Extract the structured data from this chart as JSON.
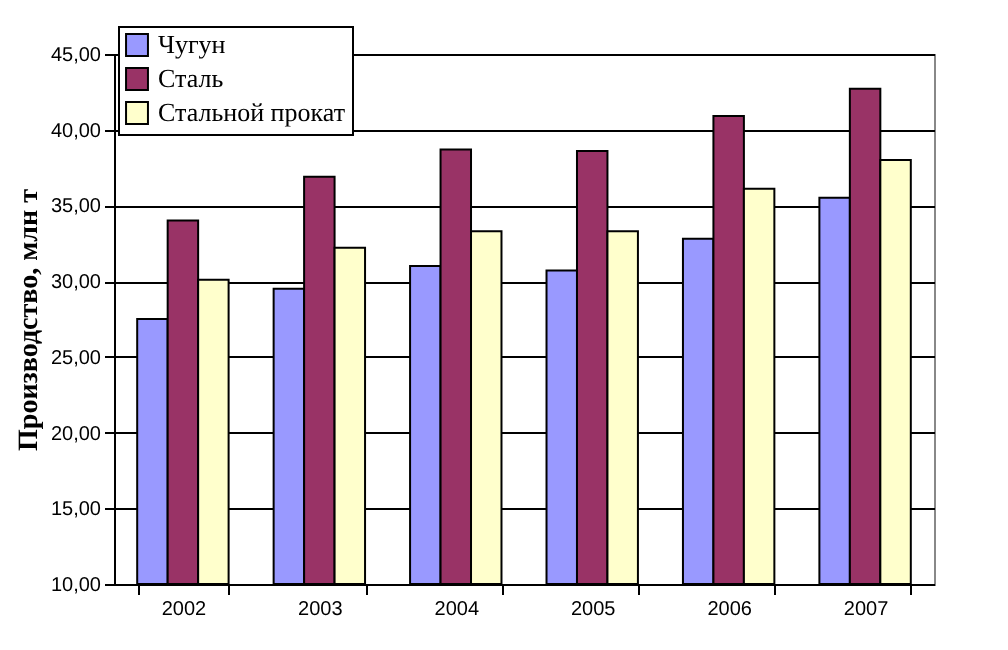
{
  "chart_data": {
    "type": "bar",
    "ylabel": "Производство, млн т",
    "categories": [
      "2002",
      "2003",
      "2004",
      "2005",
      "2006",
      "2007"
    ],
    "series": [
      {
        "name": "Чугун",
        "color": "#9999ff",
        "values": [
          27.5,
          29.5,
          31.0,
          30.7,
          32.8,
          35.5
        ]
      },
      {
        "name": "Сталь",
        "color": "#993366",
        "values": [
          34.0,
          36.9,
          38.7,
          38.6,
          40.9,
          42.7
        ]
      },
      {
        "name": "Стальной прокат",
        "color": "#ffffcc",
        "values": [
          30.1,
          32.2,
          33.3,
          33.3,
          36.1,
          38.0
        ]
      }
    ],
    "ylim": [
      10,
      45
    ],
    "yticks": [
      {
        "value": 10,
        "label": "10,00"
      },
      {
        "value": 15,
        "label": "15,00"
      },
      {
        "value": 20,
        "label": "20,00"
      },
      {
        "value": 25,
        "label": "25,00"
      },
      {
        "value": 30,
        "label": "30,00"
      },
      {
        "value": 35,
        "label": "35,00"
      },
      {
        "value": 40,
        "label": "40,00"
      },
      {
        "value": 45,
        "label": "45,00"
      }
    ],
    "grid": "y",
    "legend": "top left"
  }
}
